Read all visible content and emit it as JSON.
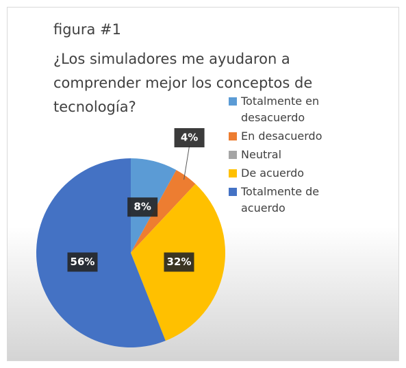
{
  "chart_data": {
    "type": "pie",
    "title": "figura #1",
    "subtitle": "¿Los simuladores me ayudaron a comprender mejor los conceptos de tecnología?",
    "categories": [
      "Totalmente en desacuerdo",
      "En desacuerdo",
      "Neutral",
      "De acuerdo",
      "Totalmente de acuerdo"
    ],
    "values": [
      8,
      4,
      0,
      32,
      56
    ],
    "value_labels": [
      "8%",
      "4%",
      null,
      "32%",
      "56%"
    ],
    "colors": [
      "#5b9bd5",
      "#ed7d31",
      "#a5a5a5",
      "#ffc000",
      "#4472c4"
    ],
    "legend": "right"
  }
}
